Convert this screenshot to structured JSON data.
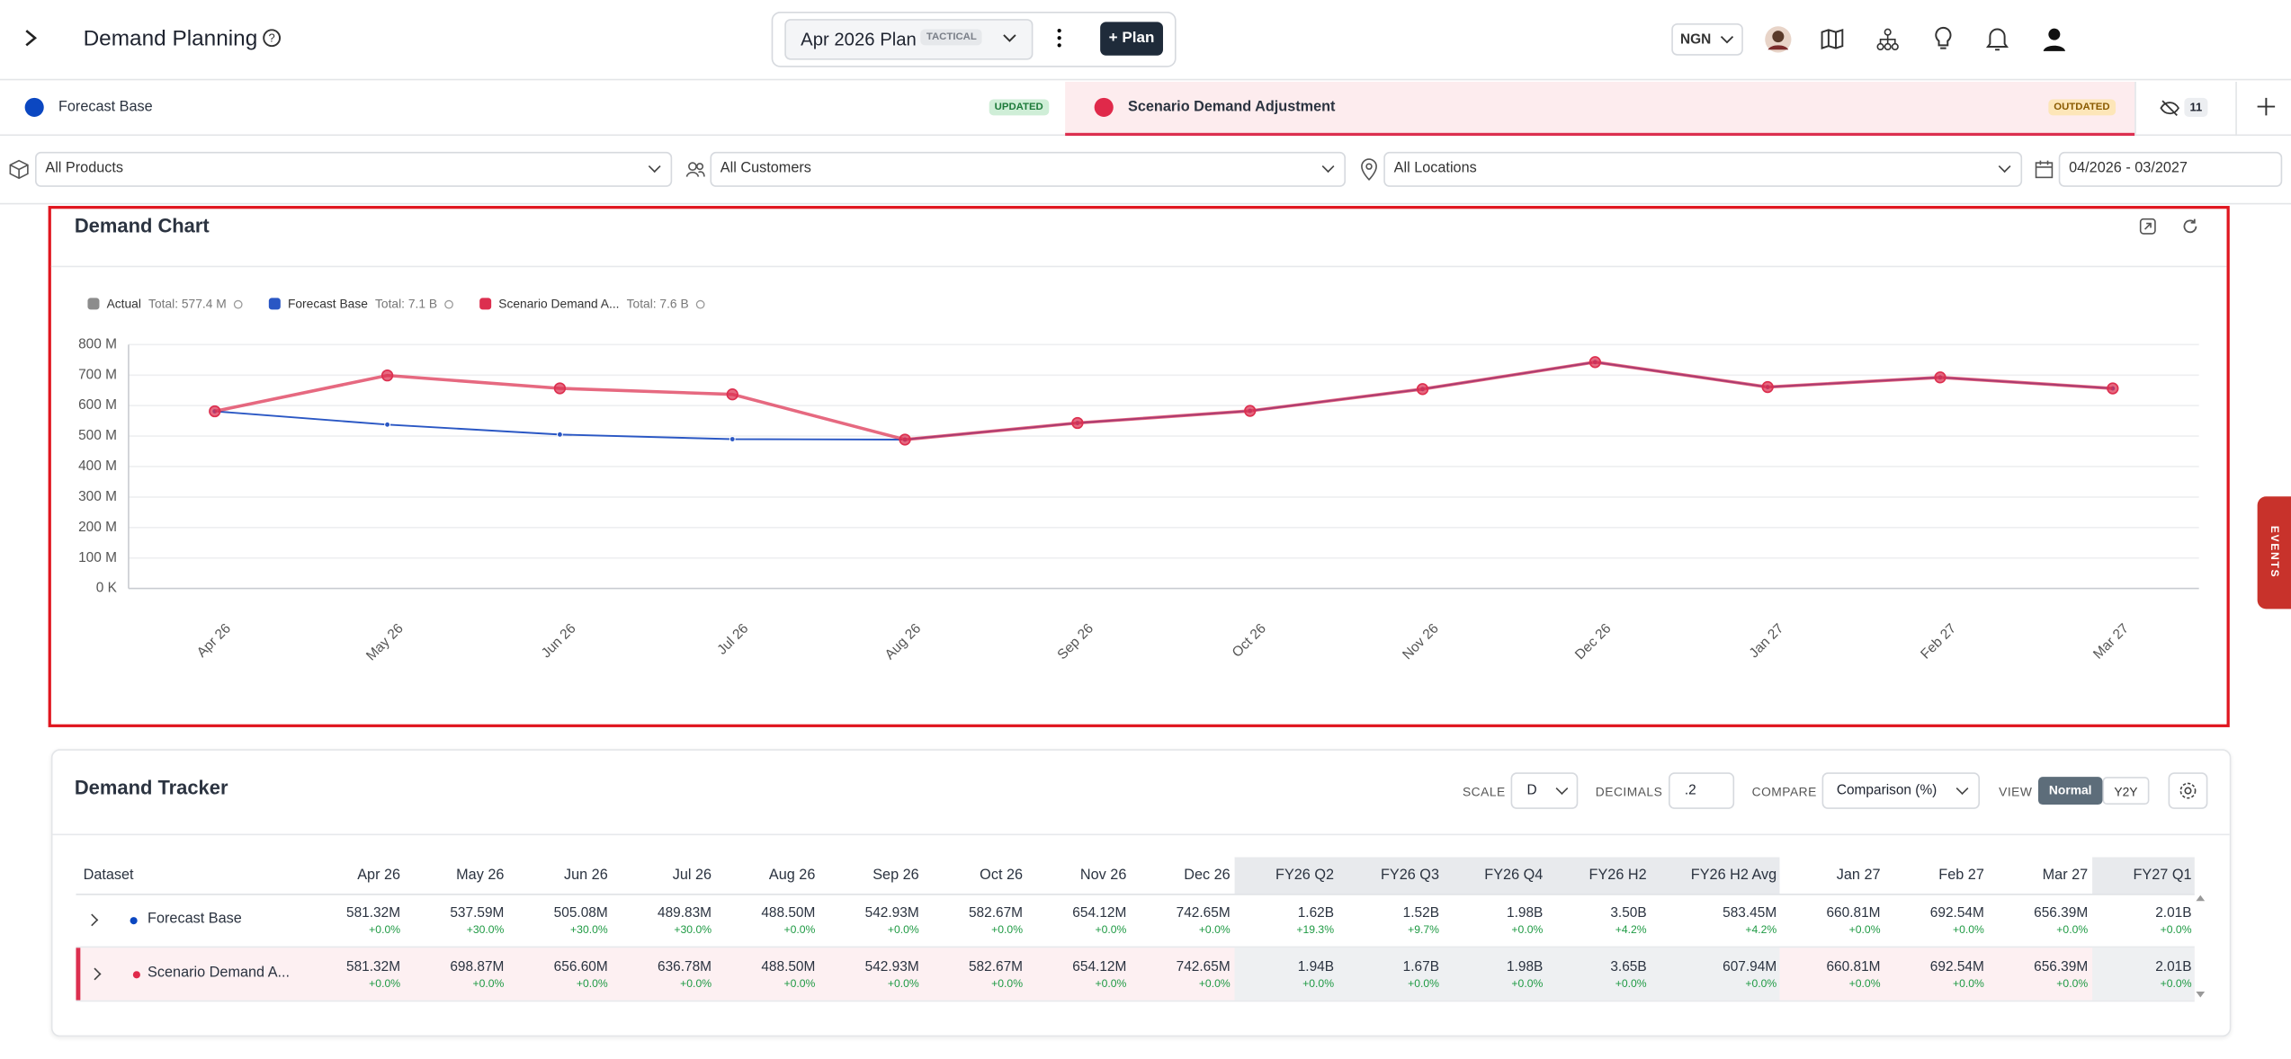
{
  "header": {
    "title": "Demand Planning",
    "plan": "Apr 2026 Plan",
    "plan_type": "TACTICAL",
    "add_plan": "+ Plan",
    "currency": "NGN"
  },
  "tabs": [
    {
      "name": "Forecast Base",
      "status": "UPDATED",
      "color": "#0b47c1"
    },
    {
      "name": "Scenario Demand Adjustment",
      "status": "OUTDATED",
      "color": "#e0294a"
    }
  ],
  "hidden_count": "11",
  "filters": {
    "products": "All Products",
    "customers": "All Customers",
    "locations": "All Locations",
    "period": "04/2026 - 03/2027"
  },
  "chart_data": {
    "type": "line",
    "title": "Demand Chart",
    "categories": [
      "Apr 26",
      "May 26",
      "Jun 26",
      "Jul 26",
      "Aug 26",
      "Sep 26",
      "Oct 26",
      "Nov 26",
      "Dec 26",
      "Jan 27",
      "Feb 27",
      "Mar 27"
    ],
    "series": [
      {
        "name": "Actual",
        "color": "#8c8c8c",
        "total": "Total: 577.4 M"
      },
      {
        "name": "Forecast Base",
        "color": "#2a57c4",
        "total": "Total: 7.1 B",
        "values": [
          581.32,
          537.59,
          505.08,
          489.83,
          488.5,
          542.93,
          582.67,
          654.12,
          742.65,
          660.81,
          692.54,
          656.39
        ]
      },
      {
        "name": "Scenario Demand A...",
        "color": "#dc2f4f",
        "total": "Total: 7.6 B",
        "values": [
          581.32,
          698.87,
          656.6,
          636.78,
          488.5,
          542.93,
          582.67,
          654.12,
          742.65,
          660.81,
          692.54,
          656.39
        ]
      }
    ],
    "ylim": [
      0,
      800
    ],
    "yticks": [
      {
        "value": 0,
        "label": "0 K"
      },
      {
        "value": 100,
        "label": "100 M"
      },
      {
        "value": 200,
        "label": "200 M"
      },
      {
        "value": 300,
        "label": "300 M"
      },
      {
        "value": 400,
        "label": "400 M"
      },
      {
        "value": 500,
        "label": "500 M"
      },
      {
        "value": 600,
        "label": "600 M"
      },
      {
        "value": 700,
        "label": "700 M"
      },
      {
        "value": 800,
        "label": "800 M"
      }
    ],
    "grid": true
  },
  "side_tab": "EVENTS",
  "tracker": {
    "title": "Demand Tracker",
    "controls": {
      "scale_label": "SCALE",
      "scale": "D",
      "decimals_label": "DECIMALS",
      "decimals": ".2",
      "compare_label": "COMPARE",
      "compare": "Comparison (%)",
      "view_label": "VIEW",
      "views": [
        "Normal",
        "Y2Y"
      ]
    },
    "table": {
      "header": [
        "Dataset",
        "Apr 26",
        "May 26",
        "Jun 26",
        "Jul 26",
        "Aug 26",
        "Sep 26",
        "Oct 26",
        "Nov 26",
        "Dec 26",
        "FY26 Q2",
        "FY26 Q3",
        "FY26 Q4",
        "FY26 H2",
        "FY26 H2 Avg",
        "Jan 27",
        "Feb 27",
        "Mar 27",
        "FY27 Q1"
      ],
      "rows": [
        {
          "name": "Forecast Base",
          "cells": [
            [
              "581.32M",
              "+0.0%"
            ],
            [
              "537.59M",
              "+30.0%"
            ],
            [
              "505.08M",
              "+30.0%"
            ],
            [
              "489.83M",
              "+30.0%"
            ],
            [
              "488.50M",
              "+0.0%"
            ],
            [
              "542.93M",
              "+0.0%"
            ],
            [
              "582.67M",
              "+0.0%"
            ],
            [
              "654.12M",
              "+0.0%"
            ],
            [
              "742.65M",
              "+0.0%"
            ],
            [
              "1.62B",
              "+19.3%"
            ],
            [
              "1.52B",
              "+9.7%"
            ],
            [
              "1.98B",
              "+0.0%"
            ],
            [
              "3.50B",
              "+4.2%"
            ],
            [
              "583.45M",
              "+4.2%"
            ],
            [
              "660.81M",
              "+0.0%"
            ],
            [
              "692.54M",
              "+0.0%"
            ],
            [
              "656.39M",
              "+0.0%"
            ],
            [
              "2.01B",
              "+0.0%"
            ]
          ]
        },
        {
          "name": "Scenario Demand A...",
          "cells": [
            [
              "581.32M",
              "+0.0%"
            ],
            [
              "698.87M",
              "+0.0%"
            ],
            [
              "656.60M",
              "+0.0%"
            ],
            [
              "636.78M",
              "+0.0%"
            ],
            [
              "488.50M",
              "+0.0%"
            ],
            [
              "542.93M",
              "+0.0%"
            ],
            [
              "582.67M",
              "+0.0%"
            ],
            [
              "654.12M",
              "+0.0%"
            ],
            [
              "742.65M",
              "+0.0%"
            ],
            [
              "1.94B",
              "+0.0%"
            ],
            [
              "1.67B",
              "+0.0%"
            ],
            [
              "1.98B",
              "+0.0%"
            ],
            [
              "3.65B",
              "+0.0%"
            ],
            [
              "607.94M",
              "+0.0%"
            ],
            [
              "660.81M",
              "+0.0%"
            ],
            [
              "692.54M",
              "+0.0%"
            ],
            [
              "656.39M",
              "+0.0%"
            ],
            [
              "2.01B",
              "+0.0%"
            ]
          ]
        }
      ]
    }
  }
}
